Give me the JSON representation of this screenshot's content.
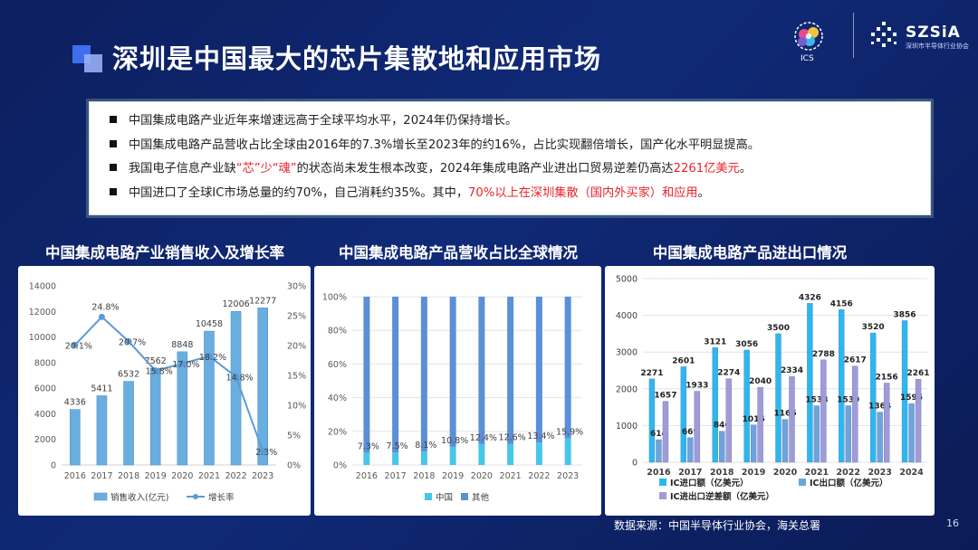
{
  "slide": {
    "title": "深圳是中国最大的芯片集散地和应用市场",
    "page_number": "16",
    "source": "数据来源：中国半导体行业协会，海关总署"
  },
  "logos": {
    "ics_text": "ICS",
    "ics_ring_text": "中国（深圳）集成电路峰会",
    "szsia_text": "SZSiA",
    "szsia_sub": "深圳市半导体行业协会"
  },
  "bullets": [
    {
      "parts": [
        {
          "text": "中国集成电路产业近年来增速远高于全球平均水平，2024年仍保持增长。",
          "red": false
        }
      ]
    },
    {
      "parts": [
        {
          "text": "中国集成电路产品营收占比全球由2016年的7.3%增长至2023年的约16%，占比实现翻倍增长，国产化水平明显提高。",
          "red": false
        }
      ]
    },
    {
      "parts": [
        {
          "text": "我国电子信息产业缺",
          "red": false
        },
        {
          "text": "“芯”少“魂”",
          "red": true
        },
        {
          "text": "的状态尚未发生根本改变，2024年集成电路产业进出口贸易逆差仍高达",
          "red": false
        },
        {
          "text": "2261亿美元",
          "red": true
        },
        {
          "text": "。",
          "red": false
        }
      ]
    },
    {
      "parts": [
        {
          "text": "中国进口了全球IC市场总量的约70%，自己消耗约35%。其中，",
          "red": false
        },
        {
          "text": "70%以上在深圳集散（国内外买家）和应用",
          "red": true
        },
        {
          "text": "。",
          "red": false
        }
      ]
    }
  ],
  "colors": {
    "accent_red": "#e8232a",
    "bar_blue": "#6aaee0",
    "line_blue": "#5b9bd5",
    "china_cyan": "#47c6ea",
    "other_blue": "#5b8fd8",
    "import_cyan": "#2bb8ee",
    "export_blue": "#6fa3db",
    "deficit_purple": "#a29ad8"
  },
  "chart_data": [
    {
      "type": "bar",
      "title": "中国集成电路产业销售收入及增长率",
      "categories": [
        "2016",
        "2017",
        "2018",
        "2019",
        "2020",
        "2021",
        "2022",
        "2023"
      ],
      "series": [
        {
          "name": "销售收入(亿元)",
          "type": "bar",
          "axis": "left",
          "values": [
            4336,
            5411,
            6532,
            7562,
            8848,
            10458,
            12006,
            12277
          ]
        },
        {
          "name": "增长率",
          "type": "line",
          "axis": "right",
          "values": [
            20.1,
            24.8,
            20.7,
            15.8,
            17.0,
            18.2,
            14.8,
            2.3
          ]
        }
      ],
      "bar_labels": [
        "4336",
        "5411",
        "6532",
        "7562",
        "8848",
        "10458",
        "12006",
        "12277"
      ],
      "line_labels": [
        "20.1%",
        "24.8%",
        "20.7%",
        "15.8%",
        "17.0%",
        "18.2%",
        "14.8%",
        "2.3%"
      ],
      "ylim_left": [
        0,
        14000
      ],
      "yticks_left": [
        "0",
        "2000",
        "4000",
        "6000",
        "8000",
        "10000",
        "12000",
        "14000"
      ],
      "ylim_right": [
        0,
        30
      ],
      "yticks_right": [
        "0%",
        "5%",
        "10%",
        "15%",
        "20%",
        "25%",
        "30%"
      ],
      "legend": "bottom",
      "grid": false
    },
    {
      "type": "bar",
      "stacked": true,
      "title": "中国集成电路产品营收占比全球情况",
      "categories": [
        "2016",
        "2017",
        "2018",
        "2019",
        "2020",
        "2021",
        "2022",
        "2023"
      ],
      "series": [
        {
          "name": "中国",
          "values": [
            7.3,
            7.5,
            8.1,
            10.8,
            12.4,
            12.6,
            13.4,
            15.9
          ]
        },
        {
          "name": "其他",
          "values": [
            92.7,
            92.5,
            91.9,
            89.2,
            87.6,
            87.4,
            86.6,
            84.1
          ]
        }
      ],
      "labels": [
        "7.3%",
        "7.5%",
        "8.1%",
        "10.8%",
        "12.4%",
        "12.6%",
        "13.4%",
        "15.9%"
      ],
      "ylim": [
        0,
        100
      ],
      "yticks": [
        "0%",
        "20%",
        "40%",
        "60%",
        "80%",
        "100%"
      ],
      "legend": "bottom",
      "grid": true
    },
    {
      "type": "bar",
      "title": "中国集成电路产品进出口情况",
      "categories": [
        "2016",
        "2017",
        "2018",
        "2019",
        "2020",
        "2021",
        "2022",
        "2023",
        "2024"
      ],
      "series": [
        {
          "name": "IC进口额（亿美元）",
          "values": [
            2271,
            2601,
            3121,
            3056,
            3500,
            4326,
            4156,
            3520,
            3856
          ]
        },
        {
          "name": "IC出口额（亿美元）",
          "values": [
            614,
            669,
            846,
            1016,
            1166,
            1538,
            1539,
            1364,
            1595
          ]
        },
        {
          "name": "IC进出口逆差额（亿美元）",
          "values": [
            1657,
            1933,
            2274,
            2040,
            2334,
            2788,
            2617,
            2156,
            2261
          ]
        }
      ],
      "ylim": [
        0,
        5000
      ],
      "yticks": [
        "0",
        "1000",
        "2000",
        "3000",
        "4000",
        "5000"
      ],
      "legend": "bottom",
      "grid": true
    }
  ]
}
